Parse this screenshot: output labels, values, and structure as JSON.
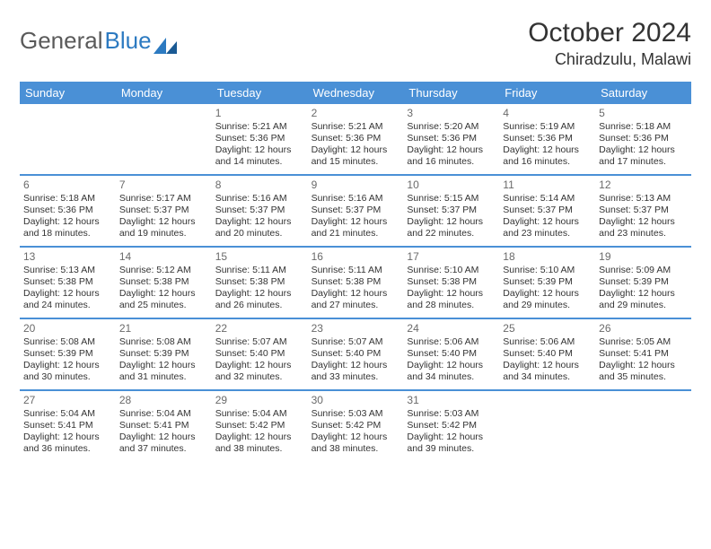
{
  "logo": {
    "text1": "General",
    "text2": "Blue"
  },
  "title": "October 2024",
  "location": "Chiradzulu, Malawi",
  "colors": {
    "header_bg": "#4a90d6",
    "header_text": "#ffffff",
    "rule": "#4a90d6",
    "text": "#333333",
    "daynum": "#6a6a6a",
    "logo_gray": "#5a5a5a",
    "logo_blue": "#2c7ac1",
    "bg": "#ffffff"
  },
  "dayNames": [
    "Sunday",
    "Monday",
    "Tuesday",
    "Wednesday",
    "Thursday",
    "Friday",
    "Saturday"
  ],
  "weeks": [
    [
      null,
      null,
      {
        "n": "1",
        "sr": "5:21 AM",
        "ss": "5:36 PM",
        "d1": "12 hours",
        "d2": "and 14 minutes."
      },
      {
        "n": "2",
        "sr": "5:21 AM",
        "ss": "5:36 PM",
        "d1": "12 hours",
        "d2": "and 15 minutes."
      },
      {
        "n": "3",
        "sr": "5:20 AM",
        "ss": "5:36 PM",
        "d1": "12 hours",
        "d2": "and 16 minutes."
      },
      {
        "n": "4",
        "sr": "5:19 AM",
        "ss": "5:36 PM",
        "d1": "12 hours",
        "d2": "and 16 minutes."
      },
      {
        "n": "5",
        "sr": "5:18 AM",
        "ss": "5:36 PM",
        "d1": "12 hours",
        "d2": "and 17 minutes."
      }
    ],
    [
      {
        "n": "6",
        "sr": "5:18 AM",
        "ss": "5:36 PM",
        "d1": "12 hours",
        "d2": "and 18 minutes."
      },
      {
        "n": "7",
        "sr": "5:17 AM",
        "ss": "5:37 PM",
        "d1": "12 hours",
        "d2": "and 19 minutes."
      },
      {
        "n": "8",
        "sr": "5:16 AM",
        "ss": "5:37 PM",
        "d1": "12 hours",
        "d2": "and 20 minutes."
      },
      {
        "n": "9",
        "sr": "5:16 AM",
        "ss": "5:37 PM",
        "d1": "12 hours",
        "d2": "and 21 minutes."
      },
      {
        "n": "10",
        "sr": "5:15 AM",
        "ss": "5:37 PM",
        "d1": "12 hours",
        "d2": "and 22 minutes."
      },
      {
        "n": "11",
        "sr": "5:14 AM",
        "ss": "5:37 PM",
        "d1": "12 hours",
        "d2": "and 23 minutes."
      },
      {
        "n": "12",
        "sr": "5:13 AM",
        "ss": "5:37 PM",
        "d1": "12 hours",
        "d2": "and 23 minutes."
      }
    ],
    [
      {
        "n": "13",
        "sr": "5:13 AM",
        "ss": "5:38 PM",
        "d1": "12 hours",
        "d2": "and 24 minutes."
      },
      {
        "n": "14",
        "sr": "5:12 AM",
        "ss": "5:38 PM",
        "d1": "12 hours",
        "d2": "and 25 minutes."
      },
      {
        "n": "15",
        "sr": "5:11 AM",
        "ss": "5:38 PM",
        "d1": "12 hours",
        "d2": "and 26 minutes."
      },
      {
        "n": "16",
        "sr": "5:11 AM",
        "ss": "5:38 PM",
        "d1": "12 hours",
        "d2": "and 27 minutes."
      },
      {
        "n": "17",
        "sr": "5:10 AM",
        "ss": "5:38 PM",
        "d1": "12 hours",
        "d2": "and 28 minutes."
      },
      {
        "n": "18",
        "sr": "5:10 AM",
        "ss": "5:39 PM",
        "d1": "12 hours",
        "d2": "and 29 minutes."
      },
      {
        "n": "19",
        "sr": "5:09 AM",
        "ss": "5:39 PM",
        "d1": "12 hours",
        "d2": "and 29 minutes."
      }
    ],
    [
      {
        "n": "20",
        "sr": "5:08 AM",
        "ss": "5:39 PM",
        "d1": "12 hours",
        "d2": "and 30 minutes."
      },
      {
        "n": "21",
        "sr": "5:08 AM",
        "ss": "5:39 PM",
        "d1": "12 hours",
        "d2": "and 31 minutes."
      },
      {
        "n": "22",
        "sr": "5:07 AM",
        "ss": "5:40 PM",
        "d1": "12 hours",
        "d2": "and 32 minutes."
      },
      {
        "n": "23",
        "sr": "5:07 AM",
        "ss": "5:40 PM",
        "d1": "12 hours",
        "d2": "and 33 minutes."
      },
      {
        "n": "24",
        "sr": "5:06 AM",
        "ss": "5:40 PM",
        "d1": "12 hours",
        "d2": "and 34 minutes."
      },
      {
        "n": "25",
        "sr": "5:06 AM",
        "ss": "5:40 PM",
        "d1": "12 hours",
        "d2": "and 34 minutes."
      },
      {
        "n": "26",
        "sr": "5:05 AM",
        "ss": "5:41 PM",
        "d1": "12 hours",
        "d2": "and 35 minutes."
      }
    ],
    [
      {
        "n": "27",
        "sr": "5:04 AM",
        "ss": "5:41 PM",
        "d1": "12 hours",
        "d2": "and 36 minutes."
      },
      {
        "n": "28",
        "sr": "5:04 AM",
        "ss": "5:41 PM",
        "d1": "12 hours",
        "d2": "and 37 minutes."
      },
      {
        "n": "29",
        "sr": "5:04 AM",
        "ss": "5:42 PM",
        "d1": "12 hours",
        "d2": "and 38 minutes."
      },
      {
        "n": "30",
        "sr": "5:03 AM",
        "ss": "5:42 PM",
        "d1": "12 hours",
        "d2": "and 38 minutes."
      },
      {
        "n": "31",
        "sr": "5:03 AM",
        "ss": "5:42 PM",
        "d1": "12 hours",
        "d2": "and 39 minutes."
      },
      null,
      null
    ]
  ],
  "labels": {
    "sunrise": "Sunrise:",
    "sunset": "Sunset:",
    "daylight": "Daylight:"
  }
}
